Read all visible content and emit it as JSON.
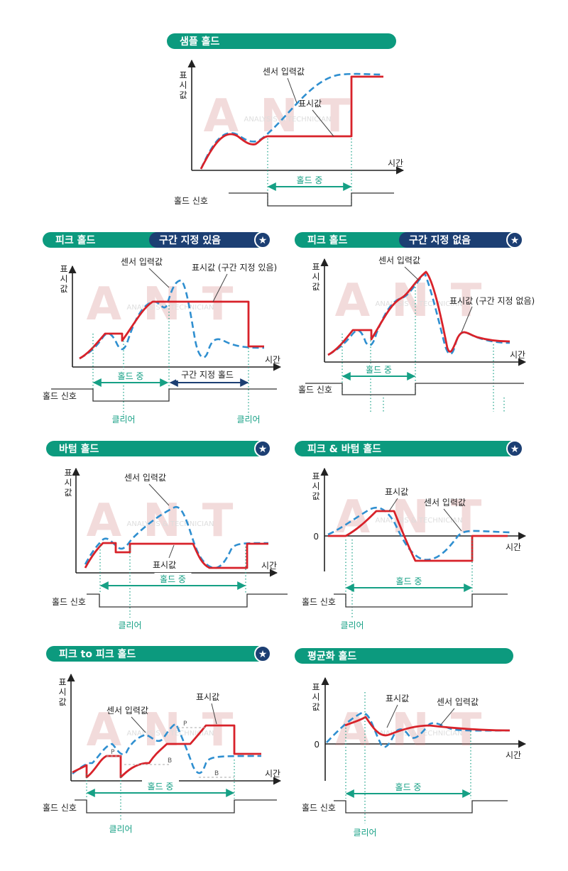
{
  "watermark": {
    "big": "ANT",
    "small": "ANALYSIS & TECHNICIAN"
  },
  "colors": {
    "teal": "#0c9a7e",
    "navy": "#1c3f73",
    "red": "#d8222a",
    "blue": "#2f8fd0",
    "green": "#16a085"
  },
  "panels": [
    {
      "id": "sample",
      "title": "샘플 홀드",
      "badge": "",
      "star": false,
      "y_label": "표시값",
      "x_label": "시간",
      "signal": "홀드 신호",
      "labels": [
        "센서 입력값",
        "표시값"
      ],
      "hold": "홀드 중",
      "clear": ""
    },
    {
      "id": "peak-section",
      "title": "피크 홀드",
      "badge": "구간 지정 있음",
      "star": true,
      "y_label": "표시값",
      "x_label": "시간",
      "signal": "홀드 신호",
      "labels": [
        "센서 입력값",
        "표시값 (구간 지정 있음)"
      ],
      "hold": "홀드 중",
      "hold2": "구간 지정 홀드",
      "clear": "클리어"
    },
    {
      "id": "peak-nosection",
      "title": "피크 홀드",
      "badge": "구간 지정 없음",
      "star": true,
      "y_label": "표시값",
      "x_label": "시간",
      "signal": "홀드 신호",
      "labels": [
        "센서 입력값",
        "표시값 (구간 지정 없음)"
      ],
      "hold": "홀드 중",
      "clear": ""
    },
    {
      "id": "bottom",
      "title": "바텀 홀드",
      "badge": "",
      "star": true,
      "y_label": "표시값",
      "x_label": "시간",
      "signal": "홀드 신호",
      "labels": [
        "센서 입력값",
        "표시값"
      ],
      "hold": "홀드 중",
      "clear": "클리어"
    },
    {
      "id": "peak-bottom",
      "title": "피크 & 바텀 홀드",
      "badge": "",
      "star": true,
      "y_label": "표시값",
      "x_label": "시간",
      "signal": "홀드 신호",
      "zero": "0",
      "labels": [
        "표시값",
        "센서 입력값"
      ],
      "hold": "홀드 중",
      "clear": "클리어"
    },
    {
      "id": "peak-to-peak",
      "title": "피크 to 피크 홀드",
      "badge": "",
      "star": true,
      "y_label": "표시값",
      "x_label": "시간",
      "signal": "홀드 신호",
      "labels": [
        "센서 입력값",
        "표시값"
      ],
      "hold": "홀드 중",
      "clear": "클리어",
      "marks": [
        "P",
        "B",
        "P",
        "B"
      ]
    },
    {
      "id": "average",
      "title": "평균화 홀드",
      "badge": "",
      "star": false,
      "y_label": "표시값",
      "x_label": "시간",
      "signal": "홀드 신호",
      "zero": "0",
      "labels": [
        "표시값",
        "센서 입력값"
      ],
      "hold": "홀드 중",
      "clear": "클리어"
    }
  ]
}
